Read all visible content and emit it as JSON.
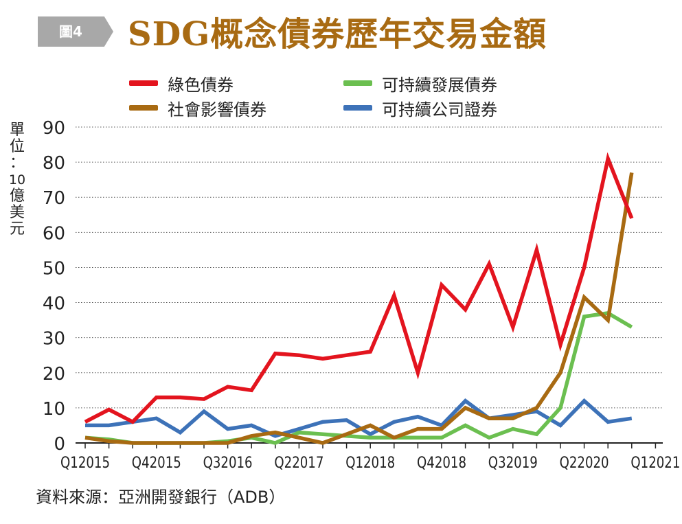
{
  "banner": {
    "label": "圖4"
  },
  "title": "SDG概念債券歷年交易金額",
  "ylabel_chars": [
    "單",
    "位",
    "：",
    "10",
    "億",
    "美",
    "元"
  ],
  "source": "資料來源：亞洲開發銀行（ADB）",
  "colors": {
    "title": "#a86a12",
    "banner": "#a8a8a8",
    "green_bond": "#e3141e",
    "social_bond": "#a86a12",
    "sustainability_bond": "#6bbf50",
    "sustainability_corp": "#3d72b8"
  },
  "chart_data": {
    "type": "line",
    "title": "SDG概念債券歷年交易金額",
    "xlabel": "",
    "ylabel": "單位：10億美元",
    "ylim": [
      0,
      90
    ],
    "yticks": [
      0,
      10,
      20,
      30,
      40,
      50,
      60,
      70,
      80,
      90
    ],
    "grid": "horizontal dotted",
    "legend_placement": "top",
    "x_tick_labels": [
      "Q12015",
      "Q42015",
      "Q32016",
      "Q22017",
      "Q12018",
      "Q42018",
      "Q32019",
      "Q22020",
      "Q12021"
    ],
    "x_tick_positions": [
      0,
      3,
      6,
      9,
      12,
      15,
      18,
      21,
      24
    ],
    "x": [
      "Q12015",
      "Q22015",
      "Q32015",
      "Q42015",
      "Q12016",
      "Q22016",
      "Q32016",
      "Q42016",
      "Q12017",
      "Q22017",
      "Q32017",
      "Q42017",
      "Q12018",
      "Q22018",
      "Q32018",
      "Q42018",
      "Q12019",
      "Q22019",
      "Q32019",
      "Q42019",
      "Q12020",
      "Q22020",
      "Q32020",
      "Q42020"
    ],
    "series": [
      {
        "name": "綠色債券",
        "color": "#e3141e",
        "values": [
          6,
          9.5,
          6,
          13,
          13,
          12.5,
          16,
          15,
          25.5,
          25,
          24,
          25,
          26,
          42,
          20,
          45,
          38,
          51,
          33,
          55,
          28,
          50,
          81,
          64
        ]
      },
      {
        "name": "可持續發展債券",
        "color": "#6bbf50",
        "values": [
          1.5,
          1,
          0,
          0,
          0,
          0,
          0.5,
          1.5,
          0,
          3,
          2.5,
          2,
          1.5,
          1.5,
          1.5,
          1.5,
          5,
          1.5,
          4,
          2.5,
          10,
          36,
          37,
          33
        ]
      },
      {
        "name": "社會影響債券",
        "color": "#a86a12",
        "values": [
          1.5,
          0.5,
          0,
          0,
          0,
          0,
          0,
          2,
          3,
          1.5,
          0,
          2.5,
          5,
          1.5,
          4,
          4,
          10,
          7,
          7,
          10,
          20,
          41.5,
          35,
          77
        ]
      },
      {
        "name": "可持續公司證券",
        "color": "#3d72b8",
        "values": [
          5,
          5,
          6,
          7,
          3,
          9,
          4,
          5,
          2,
          4,
          6,
          6.5,
          2.5,
          6,
          7.5,
          5,
          12,
          7,
          8,
          9,
          5,
          12,
          6,
          7
        ]
      }
    ]
  }
}
